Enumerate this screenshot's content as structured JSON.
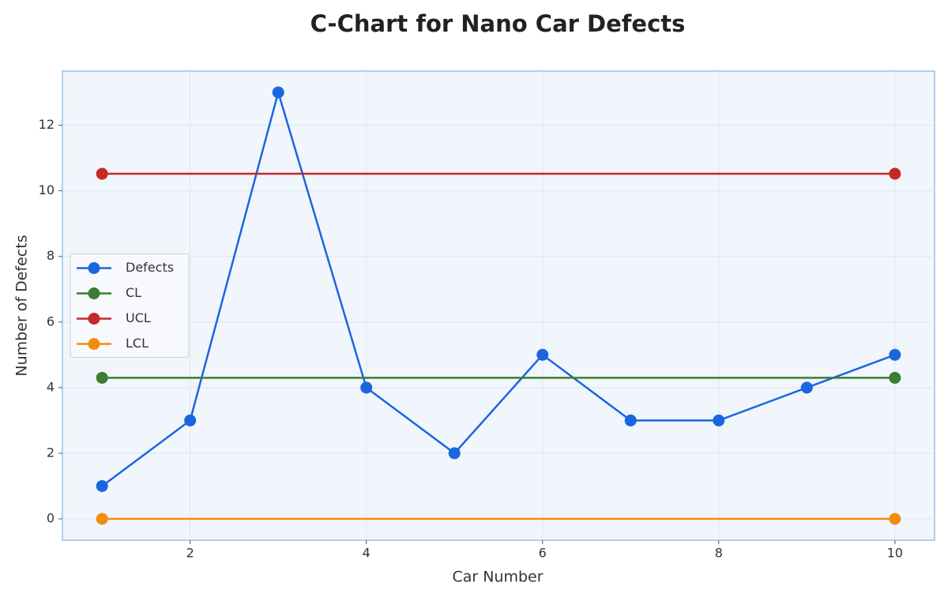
{
  "chart_data": {
    "type": "line",
    "title": "C-Chart for Nano Car Defects",
    "x_label": "Car Number",
    "y_label": "Number of Defects",
    "series": [
      {
        "name": "Defects",
        "color": "#1a66e0",
        "x": [
          1,
          2,
          3,
          4,
          5,
          6,
          7,
          8,
          9,
          10
        ],
        "values": [
          1,
          3,
          13,
          4,
          2,
          5,
          3,
          3,
          4,
          5
        ]
      },
      {
        "name": "CL",
        "color": "#3b7d32",
        "x": [
          1,
          10
        ],
        "values": [
          4.3,
          4.3
        ]
      },
      {
        "name": "UCL",
        "color": "#c62828",
        "x": [
          1,
          10
        ],
        "values": [
          10.52,
          10.52
        ]
      },
      {
        "name": "LCL",
        "color": "#f28c0f",
        "x": [
          1,
          10
        ],
        "values": [
          0,
          0
        ]
      }
    ],
    "xlim": [
      0.55,
      10.45
    ],
    "xticks": [
      2,
      4,
      6,
      8,
      10
    ],
    "ylim": [
      -0.65,
      13.65
    ],
    "yticks": [
      0,
      2,
      4,
      6,
      8,
      10,
      12
    ],
    "grid": true,
    "legend": "center left"
  }
}
